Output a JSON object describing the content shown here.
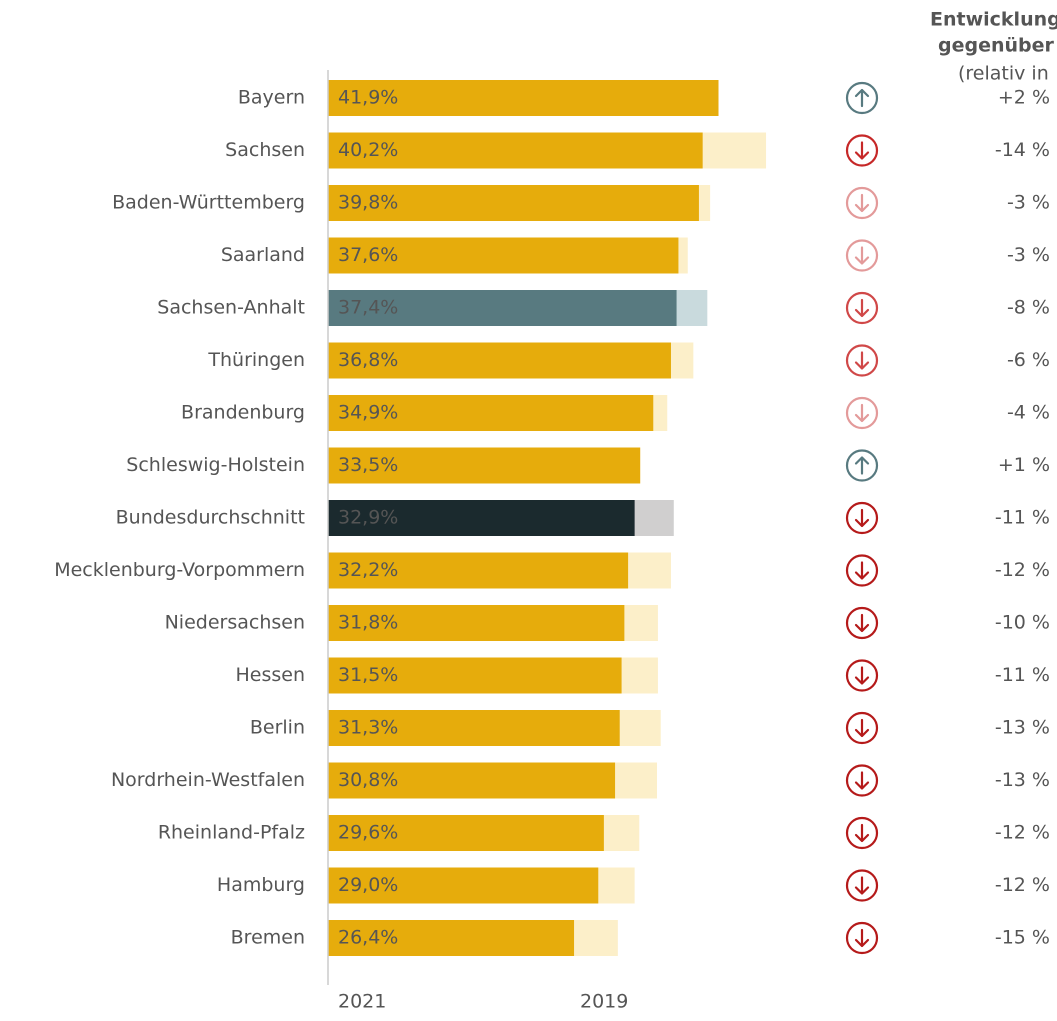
{
  "chart_data": {
    "type": "bar",
    "categories": [
      "Bayern",
      "Sachsen",
      "Baden-Württemberg",
      "Saarland",
      "Sachsen-Anhalt",
      "Thüringen",
      "Brandenburg",
      "Schleswig-Holstein",
      "Bundesdurchschnitt",
      "Mecklenburg-Vorpommern",
      "Niedersachsen",
      "Hessen",
      "Berlin",
      "Nordrhein-Westfalen",
      "Rheinland-Pfalz",
      "Hamburg",
      "Bremen"
    ],
    "series": [
      {
        "name": "2021",
        "legend_color": "#e6ac0c",
        "values": [
          41.9,
          40.2,
          39.8,
          37.6,
          37.4,
          36.8,
          34.9,
          33.5,
          32.9,
          32.2,
          31.8,
          31.5,
          31.3,
          30.8,
          29.6,
          29.0,
          26.4
        ],
        "value_labels": [
          "41,9%",
          "40,2%",
          "39,8%",
          "37,6%",
          "37,4%",
          "36,8%",
          "34,9%",
          "33,5%",
          "32,9%",
          "32,2%",
          "31,8%",
          "31,5%",
          "31,3%",
          "30,8%",
          "29,6%",
          "29,0%",
          "26,4%"
        ],
        "colors": [
          "#e6ac0c",
          "#e6ac0c",
          "#e6ac0c",
          "#e6ac0c",
          "#587a80",
          "#e6ac0c",
          "#e6ac0c",
          "#e6ac0c",
          "#1b2a2e",
          "#e6ac0c",
          "#e6ac0c",
          "#e6ac0c",
          "#e6ac0c",
          "#e6ac0c",
          "#e6ac0c",
          "#e6ac0c",
          "#e6ac0c"
        ]
      },
      {
        "name": "2019",
        "legend_color": "#f0d27a",
        "values": [
          41.1,
          47.0,
          41.0,
          38.6,
          40.7,
          39.2,
          36.4,
          33.2,
          37.1,
          36.8,
          35.4,
          35.4,
          35.7,
          35.3,
          33.4,
          32.9,
          31.1
        ],
        "colors": [
          "#fcefc9",
          "#fcefc9",
          "#fcefc9",
          "#fcefc9",
          "#c9dadd",
          "#fcefc9",
          "#fcefc9",
          "#fcefc9",
          "#d0cfcf",
          "#fcefc9",
          "#fcefc9",
          "#fcefc9",
          "#fcefc9",
          "#fcefc9",
          "#fcefc9",
          "#fcefc9",
          "#fcefc9"
        ]
      }
    ],
    "change_title": [
      "Entwicklung",
      "gegenüber",
      "(relativ in"
    ],
    "changes": {
      "values": [
        2,
        -14,
        -3,
        -3,
        -8,
        -6,
        -4,
        1,
        -11,
        -12,
        -10,
        -11,
        -13,
        -13,
        -12,
        -12,
        -15
      ],
      "value_labels": [
        "+2 %",
        "-14 %",
        "-3 %",
        "-3 %",
        "-8 %",
        "-6 %",
        "-4 %",
        "+1 %",
        "-11 %",
        "-12 %",
        "-10 %",
        "-11 %",
        "-13 %",
        "-13 %",
        "-12 %",
        "-12 %",
        "-15 %"
      ],
      "colors": [
        "#587a80",
        "#c62828",
        "#e39a9a",
        "#e39a9a",
        "#d04848",
        "#d04848",
        "#e39a9a",
        "#587a80",
        "#b51a1a",
        "#b51a1a",
        "#b51a1a",
        "#b51a1a",
        "#b51a1a",
        "#b51a1a",
        "#b51a1a",
        "#b51a1a",
        "#b51a1a"
      ]
    },
    "xlim": [
      0,
      50
    ]
  }
}
